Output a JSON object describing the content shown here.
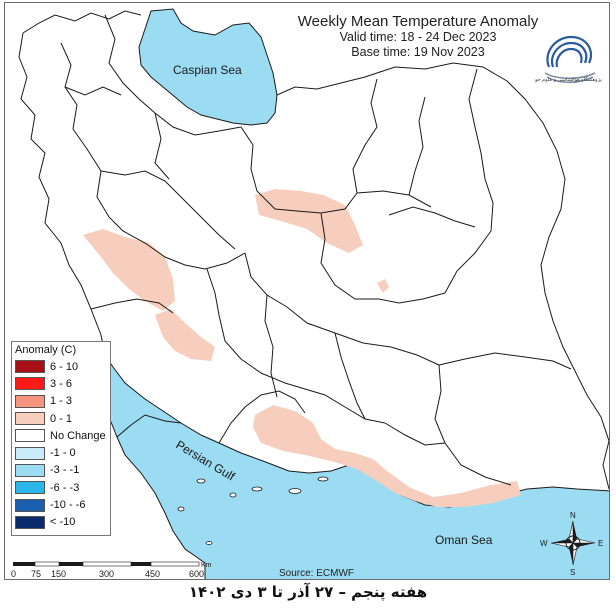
{
  "title": {
    "main": "Weekly Mean Temperature Anomaly",
    "valid": "Valid time: 18 - 24 Dec 2023",
    "base": "Base time: 19 Nov 2023"
  },
  "logo_text": "پژوهشگاه هواشناسی و علوم جو",
  "labels": {
    "caspian": "Caspian Sea",
    "persian_gulf": "Persian Gulf",
    "oman_sea": "Oman Sea",
    "source": "Source: ECMWF",
    "km": "Km"
  },
  "compass": {
    "n": "N",
    "s": "S",
    "e": "E",
    "w": "W"
  },
  "legend": {
    "title": "Anomaly (C)",
    "items": [
      {
        "label": "6 - 10",
        "color": "#a50f15"
      },
      {
        "label": "3 - 6",
        "color": "#ff1a1a"
      },
      {
        "label": "1 - 3",
        "color": "#f6957f"
      },
      {
        "label": "0 - 1",
        "color": "#f7cdbd"
      },
      {
        "label": "No Change",
        "color": "#ffffff"
      },
      {
        "label": "-1 - 0",
        "color": "#c9ecf8"
      },
      {
        "label": "-3 - -1",
        "color": "#9cdcf2"
      },
      {
        "label": "-6 - -3",
        "color": "#29b6e8"
      },
      {
        "label": "-10 - -6",
        "color": "#1b5fb0"
      },
      {
        "label": "< -10",
        "color": "#0b2a6b"
      }
    ]
  },
  "scale": {
    "ticks": [
      "0",
      "75",
      "150",
      "300",
      "450",
      "600"
    ]
  },
  "colors": {
    "sea": "#9cdcf2",
    "warm_anomaly": "#f7cdbd",
    "border": "#1a1a1a"
  },
  "caption": "هفته پنجم – ۲۷ آذر تا ۳ دی ۱۴۰۲"
}
